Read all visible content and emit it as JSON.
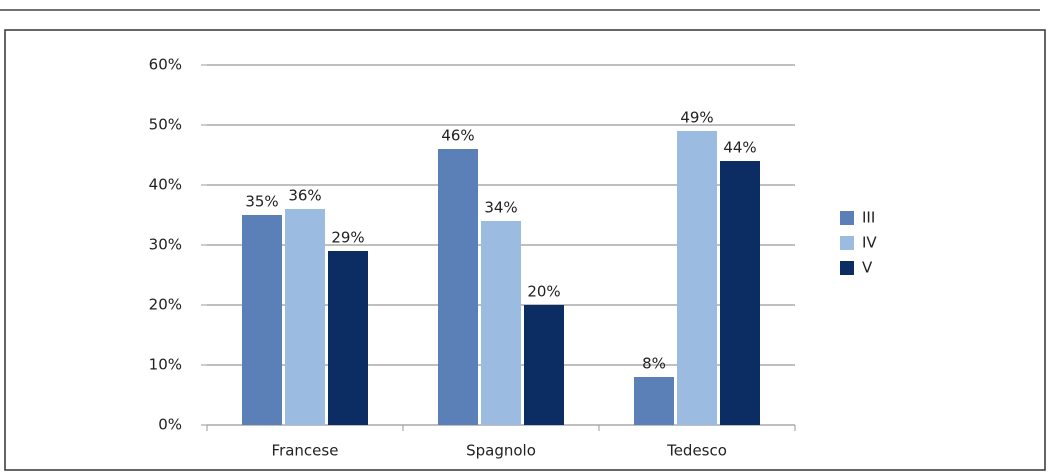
{
  "chart_data": {
    "type": "bar",
    "categories": [
      "Francese",
      "Spagnolo",
      "Tedesco"
    ],
    "series": [
      {
        "name": "III",
        "color": "#5b80b8",
        "values": [
          35,
          46,
          8
        ],
        "value_labels": [
          "35%",
          "46%",
          "8%"
        ]
      },
      {
        "name": "IV",
        "color": "#9bbce0",
        "values": [
          36,
          34,
          49
        ],
        "value_labels": [
          "36%",
          "34%",
          "49%"
        ]
      },
      {
        "name": "V",
        "color": "#0b2d63",
        "values": [
          29,
          20,
          44
        ],
        "value_labels": [
          "29%",
          "20%",
          "44%"
        ]
      }
    ],
    "ylim": [
      0,
      60
    ],
    "yticks": [
      {
        "value": 0,
        "label": "0%"
      },
      {
        "value": 10,
        "label": "10%"
      },
      {
        "value": 20,
        "label": "20%"
      },
      {
        "value": 30,
        "label": "30%"
      },
      {
        "value": 40,
        "label": "40%"
      },
      {
        "value": 50,
        "label": "50%"
      },
      {
        "value": 60,
        "label": "60%"
      }
    ],
    "grid": true,
    "legend": "right"
  }
}
